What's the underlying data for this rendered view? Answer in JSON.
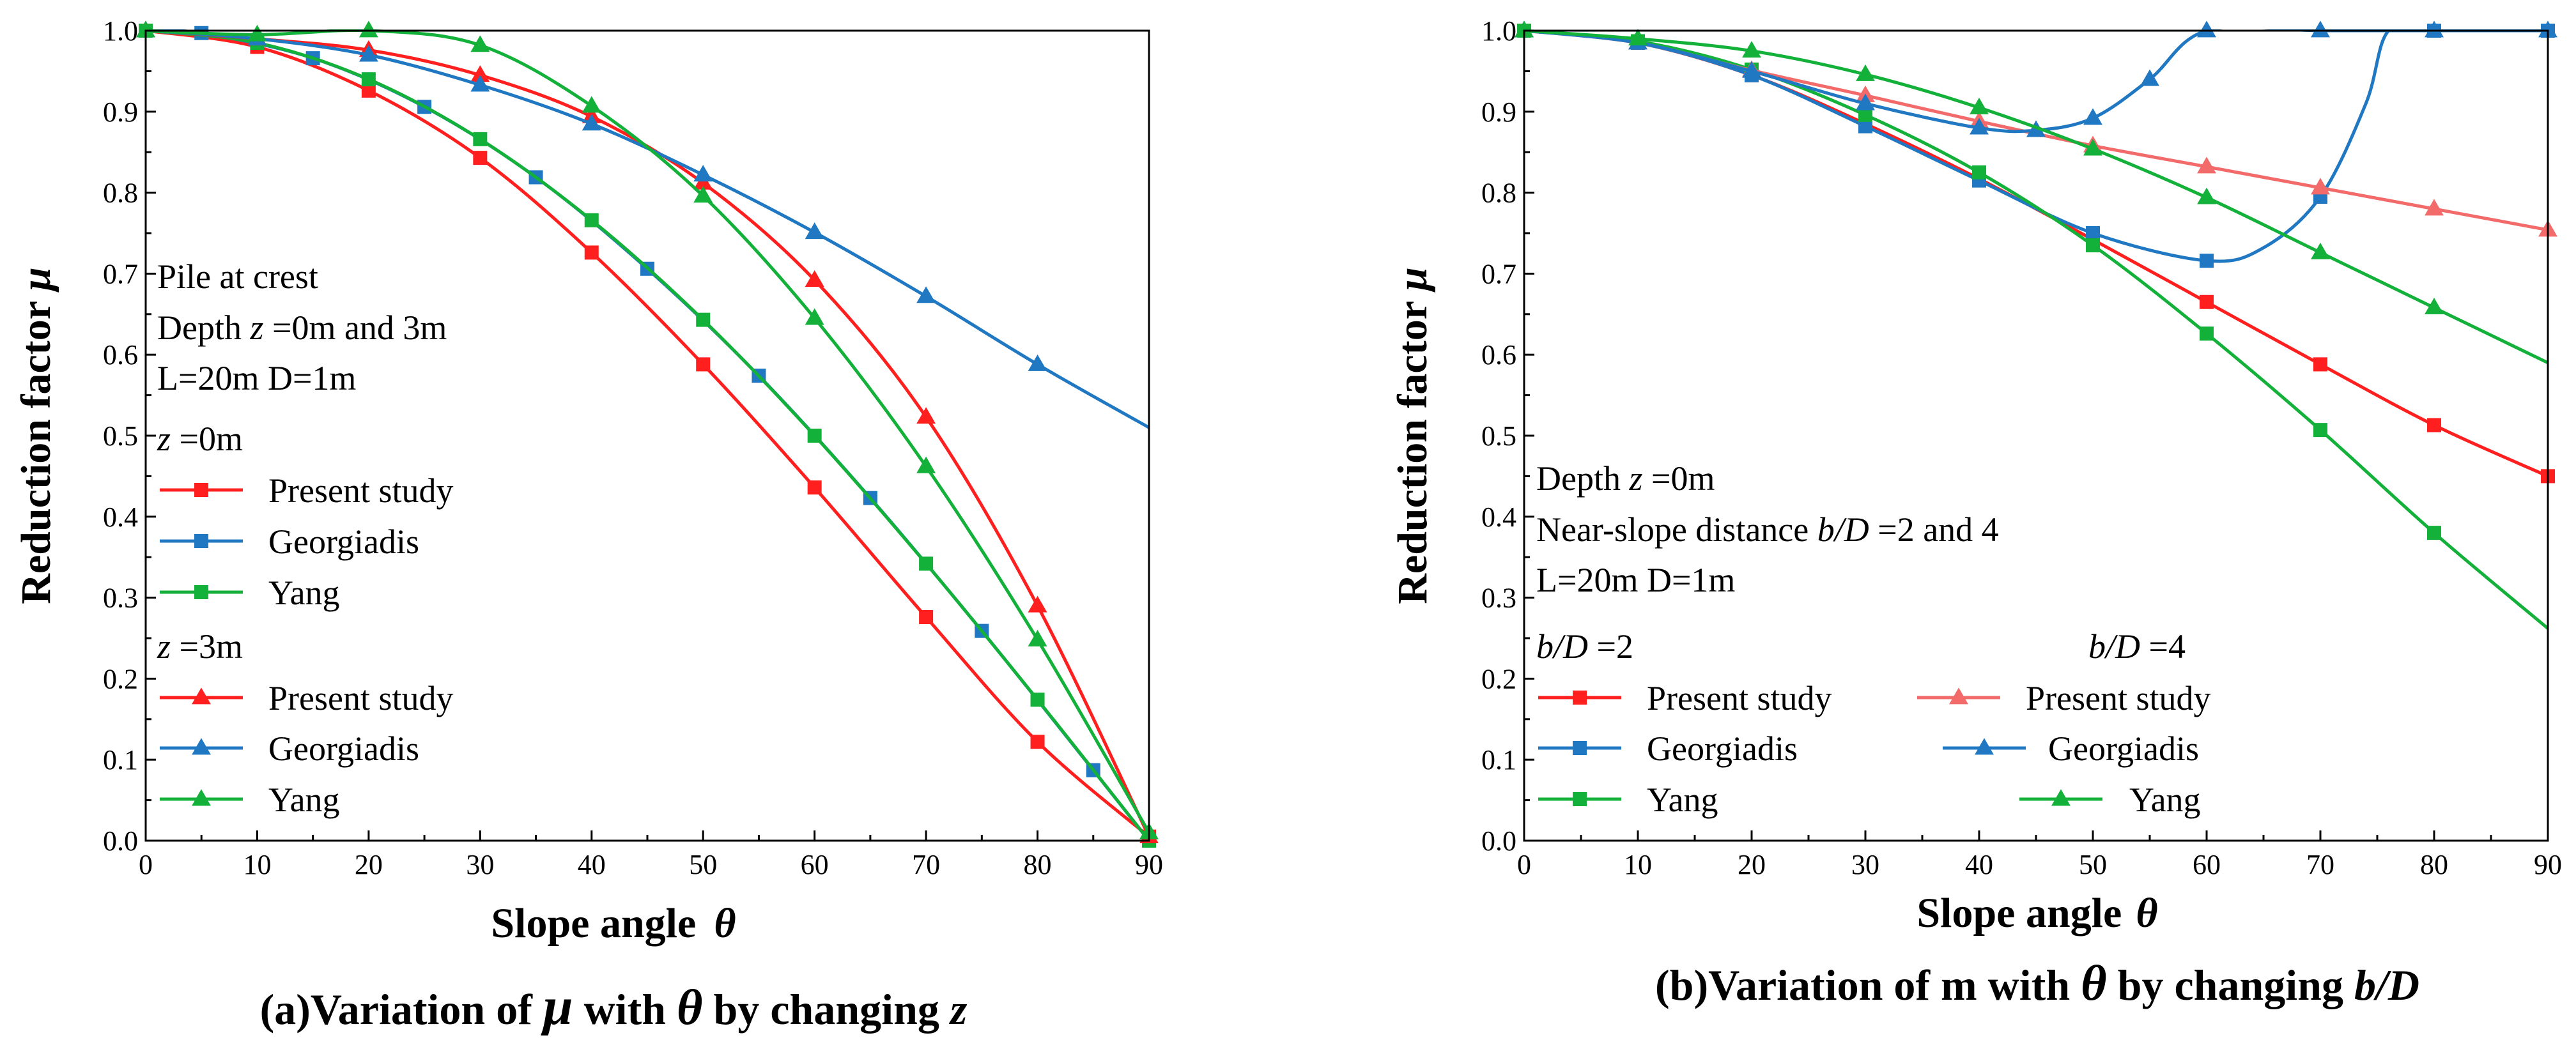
{
  "colors": {
    "present": "#ff1f1f",
    "present_light": "#f26a6a",
    "georgiadis": "#1f78c1",
    "yang": "#13b13a"
  },
  "chart_data": [
    {
      "type": "line",
      "title": "(a)Variation of μ with θ by changing z",
      "caption": {
        "prefix": "(a)Variation of ",
        "mu": "μ",
        "with": " with ",
        "theta": "θ",
        "by": " by changing ",
        "var": "z"
      },
      "xlabel": "Slope angle",
      "xlabel_symbol": "θ",
      "ylabel": "Reduction factor",
      "ylabel_symbol": "μ",
      "xlim": [
        0,
        90
      ],
      "ylim": [
        0,
        1.0
      ],
      "xticks": [
        "0",
        "10",
        "20",
        "30",
        "40",
        "50",
        "60",
        "70",
        "80",
        "90"
      ],
      "yticks": [
        "0.0",
        "0.1",
        "0.2",
        "0.3",
        "0.4",
        "0.5",
        "0.6",
        "0.7",
        "0.8",
        "0.9",
        "1.0"
      ],
      "grid": false,
      "annotations": [
        {
          "text": "Pile at crest"
        },
        {
          "prefix": "Depth ",
          "italic": "z",
          "suffix": " =0m and 3m"
        },
        {
          "text": "L=20m D=1m"
        }
      ],
      "legend_groups": [
        {
          "italic": "z",
          "label": " =0m",
          "entries": [
            "Present study",
            "Georgiadis",
            "Yang"
          ],
          "marker": "square"
        },
        {
          "italic": "z",
          "label": " =3m",
          "entries": [
            "Present study",
            "Georgiadis",
            "Yang"
          ],
          "marker": "triangle"
        }
      ],
      "series": [
        {
          "name": "Present study (z=0m)",
          "color_key": "present",
          "marker": "square",
          "x": [
            0,
            10,
            20,
            30,
            40,
            50,
            60,
            70,
            80,
            90
          ],
          "y": [
            1.0,
            0.98,
            0.926,
            0.843,
            0.726,
            0.588,
            0.436,
            0.276,
            0.122,
            0.005
          ]
        },
        {
          "name": "Georgiadis (z=0m)",
          "color_key": "georgiadis",
          "marker": "square",
          "x": [
            0,
            5,
            15,
            25,
            35,
            45,
            55,
            65,
            75,
            85,
            90
          ],
          "y": [
            1.0,
            0.997,
            0.966,
            0.906,
            0.819,
            0.706,
            0.574,
            0.423,
            0.259,
            0.087,
            0.0
          ]
        },
        {
          "name": "Yang (z=0m)",
          "color_key": "yang",
          "marker": "square",
          "x": [
            0,
            10,
            20,
            30,
            40,
            50,
            60,
            70,
            80,
            90
          ],
          "y": [
            1.0,
            0.985,
            0.94,
            0.866,
            0.766,
            0.643,
            0.5,
            0.342,
            0.174,
            0.0
          ]
        },
        {
          "name": "Present study (z=3m)",
          "color_key": "present",
          "marker": "triangle",
          "x": [
            0,
            10,
            20,
            30,
            40,
            50,
            60,
            70,
            80,
            90
          ],
          "y": [
            1.0,
            0.99,
            0.976,
            0.945,
            0.894,
            0.812,
            0.692,
            0.523,
            0.29,
            0.005
          ]
        },
        {
          "name": "Georgiadis (z=3m)",
          "color_key": "georgiadis",
          "marker": "triangle",
          "x": [
            0,
            10,
            20,
            30,
            40,
            50,
            60,
            70,
            80,
            90
          ],
          "y": [
            1.0,
            0.99,
            0.97,
            0.933,
            0.885,
            0.822,
            0.751,
            0.672,
            0.588,
            0.51
          ],
          "markers_x": [
            0,
            10,
            20,
            30,
            40,
            50,
            60,
            70,
            80
          ]
        },
        {
          "name": "Yang (z=3m)",
          "color_key": "yang",
          "marker": "triangle",
          "x": [
            0,
            10,
            20,
            30,
            40,
            50,
            60,
            70,
            80,
            90
          ],
          "y": [
            1.0,
            0.995,
            1.0,
            0.982,
            0.907,
            0.796,
            0.645,
            0.462,
            0.248,
            0.01
          ]
        }
      ]
    },
    {
      "type": "line",
      "title": "(b)Variation of m with θ by changing b/D",
      "caption": {
        "prefix": "(b)Variation of m with ",
        "theta": "θ",
        "by": " by changing ",
        "var": "b/D"
      },
      "xlabel": "Slope angle",
      "xlabel_symbol": "θ",
      "ylabel": "Reduction factor",
      "ylabel_symbol": "μ",
      "xlim": [
        0,
        90
      ],
      "ylim": [
        0,
        1.0
      ],
      "xticks": [
        "0",
        "10",
        "20",
        "30",
        "40",
        "50",
        "60",
        "70",
        "80",
        "90"
      ],
      "yticks": [
        "0.0",
        "0.1",
        "0.2",
        "0.3",
        "0.4",
        "0.5",
        "0.6",
        "0.7",
        "0.8",
        "0.9",
        "1.0"
      ],
      "grid": false,
      "annotations": [
        {
          "prefix": "Depth ",
          "italic": "z",
          "suffix": " =0m"
        },
        {
          "prefix": "Near-slope distance ",
          "italic": "b/D",
          "suffix": " =2 and 4"
        },
        {
          "text": "L=20m D=1m"
        }
      ],
      "legend_groups": [
        {
          "italic": "b/D",
          "label": " =2",
          "entries": [
            "Present study",
            "Georgiadis",
            "Yang"
          ],
          "marker": "square"
        },
        {
          "italic": "b/D",
          "label": " =4",
          "entries": [
            "Present study",
            "Georgiadis",
            "Yang"
          ],
          "marker": "triangle"
        }
      ],
      "series": [
        {
          "name": "Present study (b/D=2)",
          "color_key": "present",
          "marker": "square",
          "x": [
            0,
            10,
            20,
            30,
            40,
            50,
            60,
            70,
            80,
            90
          ],
          "y": [
            1.0,
            0.985,
            0.945,
            0.885,
            0.817,
            0.742,
            0.665,
            0.588,
            0.513,
            0.45
          ]
        },
        {
          "name": "Georgiadis (b/D=2)",
          "color_key": "georgiadis",
          "marker": "square",
          "x": [
            0,
            10,
            20,
            30,
            40,
            50,
            60,
            65,
            70,
            74,
            76,
            80,
            90
          ],
          "y": [
            1.0,
            0.985,
            0.945,
            0.882,
            0.815,
            0.75,
            0.716,
            0.732,
            0.795,
            0.91,
            1.0,
            1.0,
            1.0
          ],
          "markers_x": [
            0,
            10,
            20,
            30,
            40,
            50,
            60,
            70,
            80,
            90
          ]
        },
        {
          "name": "Yang (b/D=2)",
          "color_key": "yang",
          "marker": "square",
          "x": [
            0,
            10,
            20,
            30,
            40,
            50,
            60,
            70,
            80,
            90
          ],
          "y": [
            1.0,
            0.987,
            0.952,
            0.896,
            0.825,
            0.735,
            0.626,
            0.507,
            0.38,
            0.262
          ],
          "markers_x": [
            0,
            10,
            20,
            30,
            40,
            50,
            60,
            70,
            80
          ]
        },
        {
          "name": "Present study (b/D=4)",
          "color_key": "present_light",
          "marker": "triangle",
          "x": [
            0,
            10,
            20,
            30,
            40,
            50,
            60,
            70,
            80,
            90
          ],
          "y": [
            1.0,
            0.985,
            0.951,
            0.92,
            0.888,
            0.858,
            0.832,
            0.806,
            0.78,
            0.754
          ]
        },
        {
          "name": "Georgiadis (b/D=4)",
          "color_key": "georgiadis",
          "marker": "triangle",
          "x": [
            0,
            10,
            20,
            30,
            40,
            45,
            50,
            55,
            60,
            70,
            80,
            90
          ],
          "y": [
            1.0,
            0.985,
            0.95,
            0.91,
            0.88,
            0.877,
            0.892,
            0.94,
            1.0,
            1.0,
            1.0,
            1.0
          ]
        },
        {
          "name": "Yang (b/D=4)",
          "color_key": "yang",
          "marker": "triangle",
          "x": [
            0,
            10,
            20,
            30,
            40,
            50,
            60,
            70,
            80,
            90
          ],
          "y": [
            1.0,
            0.99,
            0.975,
            0.946,
            0.905,
            0.854,
            0.794,
            0.726,
            0.658,
            0.59
          ],
          "markers_x": [
            0,
            10,
            20,
            30,
            40,
            50,
            60,
            70,
            80
          ]
        }
      ]
    }
  ]
}
